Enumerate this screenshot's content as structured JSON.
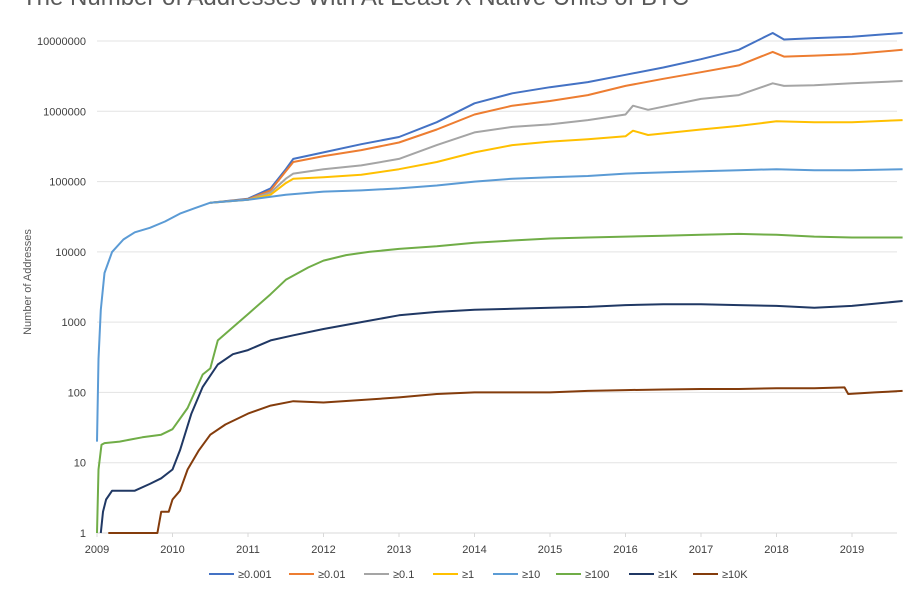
{
  "chart_data": {
    "type": "line",
    "title": "The Number of Addresses With At Least X Native Units of BTC",
    "xlabel": "",
    "ylabel": "Number of Addresses",
    "yscale": "log",
    "ylim": [
      1,
      20000000
    ],
    "xlim": [
      2009,
      2019.67
    ],
    "grid": "horizontal",
    "legend_position": "bottom",
    "x_ticks": [
      "2009",
      "2010",
      "2011",
      "2012",
      "2013",
      "2014",
      "2015",
      "2016",
      "2017",
      "2018",
      "2019"
    ],
    "y_ticks": [
      "1",
      "10",
      "100",
      "1000",
      "10000",
      "100000",
      "1000000",
      "10000000"
    ],
    "series": [
      {
        "name": "≥0.001",
        "color": "#4472C4",
        "x": [
          2010.5,
          2011.0,
          2011.3,
          2011.5,
          2011.6,
          2012.0,
          2012.5,
          2013.0,
          2013.5,
          2014.0,
          2014.5,
          2015.0,
          2015.5,
          2016.0,
          2016.5,
          2017.0,
          2017.5,
          2017.95,
          2018.1,
          2018.5,
          2019.0,
          2019.67
        ],
        "y": [
          50000,
          57000,
          80000,
          150000,
          210000,
          260000,
          340000,
          430000,
          700000,
          1300000,
          1800000,
          2200000,
          2600000,
          3300000,
          4200000,
          5500000,
          7500000,
          13000000,
          10500000,
          11000000,
          11500000,
          13000000
        ]
      },
      {
        "name": "≥0.01",
        "color": "#ED7D31",
        "x": [
          2010.5,
          2011.0,
          2011.3,
          2011.5,
          2011.6,
          2012.0,
          2012.5,
          2013.0,
          2013.5,
          2014.0,
          2014.5,
          2015.0,
          2015.5,
          2016.0,
          2016.5,
          2017.0,
          2017.5,
          2017.95,
          2018.1,
          2018.5,
          2019.0,
          2019.67
        ],
        "y": [
          50000,
          56000,
          75000,
          140000,
          190000,
          230000,
          280000,
          360000,
          550000,
          900000,
          1200000,
          1400000,
          1700000,
          2300000,
          2900000,
          3600000,
          4500000,
          7000000,
          6000000,
          6200000,
          6500000,
          7500000
        ]
      },
      {
        "name": "≥0.1",
        "color": "#A5A5A5",
        "x": [
          2010.5,
          2011.0,
          2011.3,
          2011.5,
          2011.6,
          2012.0,
          2012.5,
          2013.0,
          2013.5,
          2014.0,
          2014.5,
          2015.0,
          2015.5,
          2016.0,
          2016.1,
          2016.3,
          2017.0,
          2017.5,
          2017.95,
          2018.1,
          2018.5,
          2019.0,
          2019.67
        ],
        "y": [
          50000,
          55000,
          70000,
          110000,
          130000,
          150000,
          170000,
          210000,
          330000,
          500000,
          600000,
          650000,
          750000,
          900000,
          1200000,
          1050000,
          1500000,
          1700000,
          2500000,
          2300000,
          2350000,
          2500000,
          2700000
        ]
      },
      {
        "name": "≥1",
        "color": "#FFC000",
        "x": [
          2010.5,
          2011.0,
          2011.3,
          2011.5,
          2011.6,
          2012.0,
          2012.5,
          2013.0,
          2013.5,
          2014.0,
          2014.5,
          2015.0,
          2015.5,
          2016.0,
          2016.1,
          2016.3,
          2017.0,
          2017.5,
          2018.0,
          2018.5,
          2019.0,
          2019.67
        ],
        "y": [
          50000,
          55000,
          65000,
          95000,
          110000,
          115000,
          125000,
          150000,
          190000,
          260000,
          330000,
          370000,
          400000,
          440000,
          530000,
          460000,
          550000,
          620000,
          720000,
          700000,
          700000,
          750000
        ]
      },
      {
        "name": "≥10",
        "color": "#5B9BD5",
        "x": [
          2009.0,
          2009.02,
          2009.05,
          2009.1,
          2009.2,
          2009.35,
          2009.5,
          2009.7,
          2009.9,
          2010.1,
          2010.3,
          2010.5,
          2011.0,
          2011.5,
          2012.0,
          2012.5,
          2013.0,
          2013.5,
          2014.0,
          2014.5,
          2015.0,
          2015.5,
          2016.0,
          2016.5,
          2017.0,
          2017.5,
          2018.0,
          2018.5,
          2019.0,
          2019.67
        ],
        "y": [
          20,
          300,
          1500,
          5000,
          10000,
          15000,
          19000,
          22000,
          27000,
          35000,
          42000,
          50000,
          55000,
          65000,
          72000,
          75000,
          80000,
          88000,
          100000,
          110000,
          115000,
          120000,
          130000,
          135000,
          140000,
          145000,
          150000,
          145000,
          145000,
          150000
        ]
      },
      {
        "name": "≥100",
        "color": "#70AD47",
        "x": [
          2009.0,
          2009.02,
          2009.06,
          2009.1,
          2009.3,
          2009.6,
          2009.85,
          2010.0,
          2010.2,
          2010.4,
          2010.5,
          2010.6,
          2011.0,
          2011.3,
          2011.5,
          2011.8,
          2012.0,
          2012.3,
          2012.6,
          2013.0,
          2013.5,
          2014.0,
          2014.5,
          2015.0,
          2015.5,
          2016.0,
          2016.5,
          2017.0,
          2017.5,
          2018.0,
          2018.5,
          2019.0,
          2019.67
        ],
        "y": [
          1,
          8,
          18,
          19,
          20,
          23,
          25,
          30,
          60,
          180,
          220,
          550,
          1300,
          2500,
          4000,
          6000,
          7500,
          9000,
          10000,
          11000,
          12000,
          13500,
          14500,
          15500,
          16000,
          16500,
          17000,
          17500,
          18000,
          17500,
          16500,
          16000,
          16000
        ]
      },
      {
        "name": "≥1K",
        "color": "#203864",
        "x": [
          2009.05,
          2009.08,
          2009.12,
          2009.2,
          2009.3,
          2009.5,
          2009.7,
          2009.85,
          2010.0,
          2010.1,
          2010.25,
          2010.4,
          2010.6,
          2010.8,
          2011.0,
          2011.3,
          2011.6,
          2012.0,
          2012.5,
          2013.0,
          2013.5,
          2014.0,
          2014.5,
          2015.0,
          2015.5,
          2016.0,
          2016.5,
          2017.0,
          2017.5,
          2018.0,
          2018.5,
          2019.0,
          2019.67
        ],
        "y": [
          1,
          2,
          3,
          4,
          4,
          4,
          5,
          6,
          8,
          15,
          50,
          120,
          250,
          350,
          400,
          550,
          650,
          800,
          1000,
          1250,
          1400,
          1500,
          1550,
          1600,
          1650,
          1750,
          1800,
          1800,
          1750,
          1700,
          1600,
          1700,
          2000
        ]
      },
      {
        "name": "≥10K",
        "color": "#843C0C",
        "x": [
          2009.15,
          2009.5,
          2009.8,
          2009.85,
          2009.95,
          2010.0,
          2010.1,
          2010.2,
          2010.35,
          2010.5,
          2010.7,
          2011.0,
          2011.3,
          2011.6,
          2012.0,
          2012.5,
          2013.0,
          2013.5,
          2014.0,
          2014.5,
          2015.0,
          2015.5,
          2016.0,
          2016.5,
          2017.0,
          2017.5,
          2018.0,
          2018.5,
          2018.9,
          2018.95,
          2019.3,
          2019.67
        ],
        "y": [
          1,
          1,
          1,
          2,
          2,
          3,
          4,
          8,
          15,
          25,
          35,
          50,
          65,
          75,
          72,
          78,
          85,
          95,
          100,
          100,
          100,
          105,
          108,
          110,
          112,
          112,
          115,
          115,
          118,
          95,
          100,
          105
        ]
      }
    ]
  }
}
